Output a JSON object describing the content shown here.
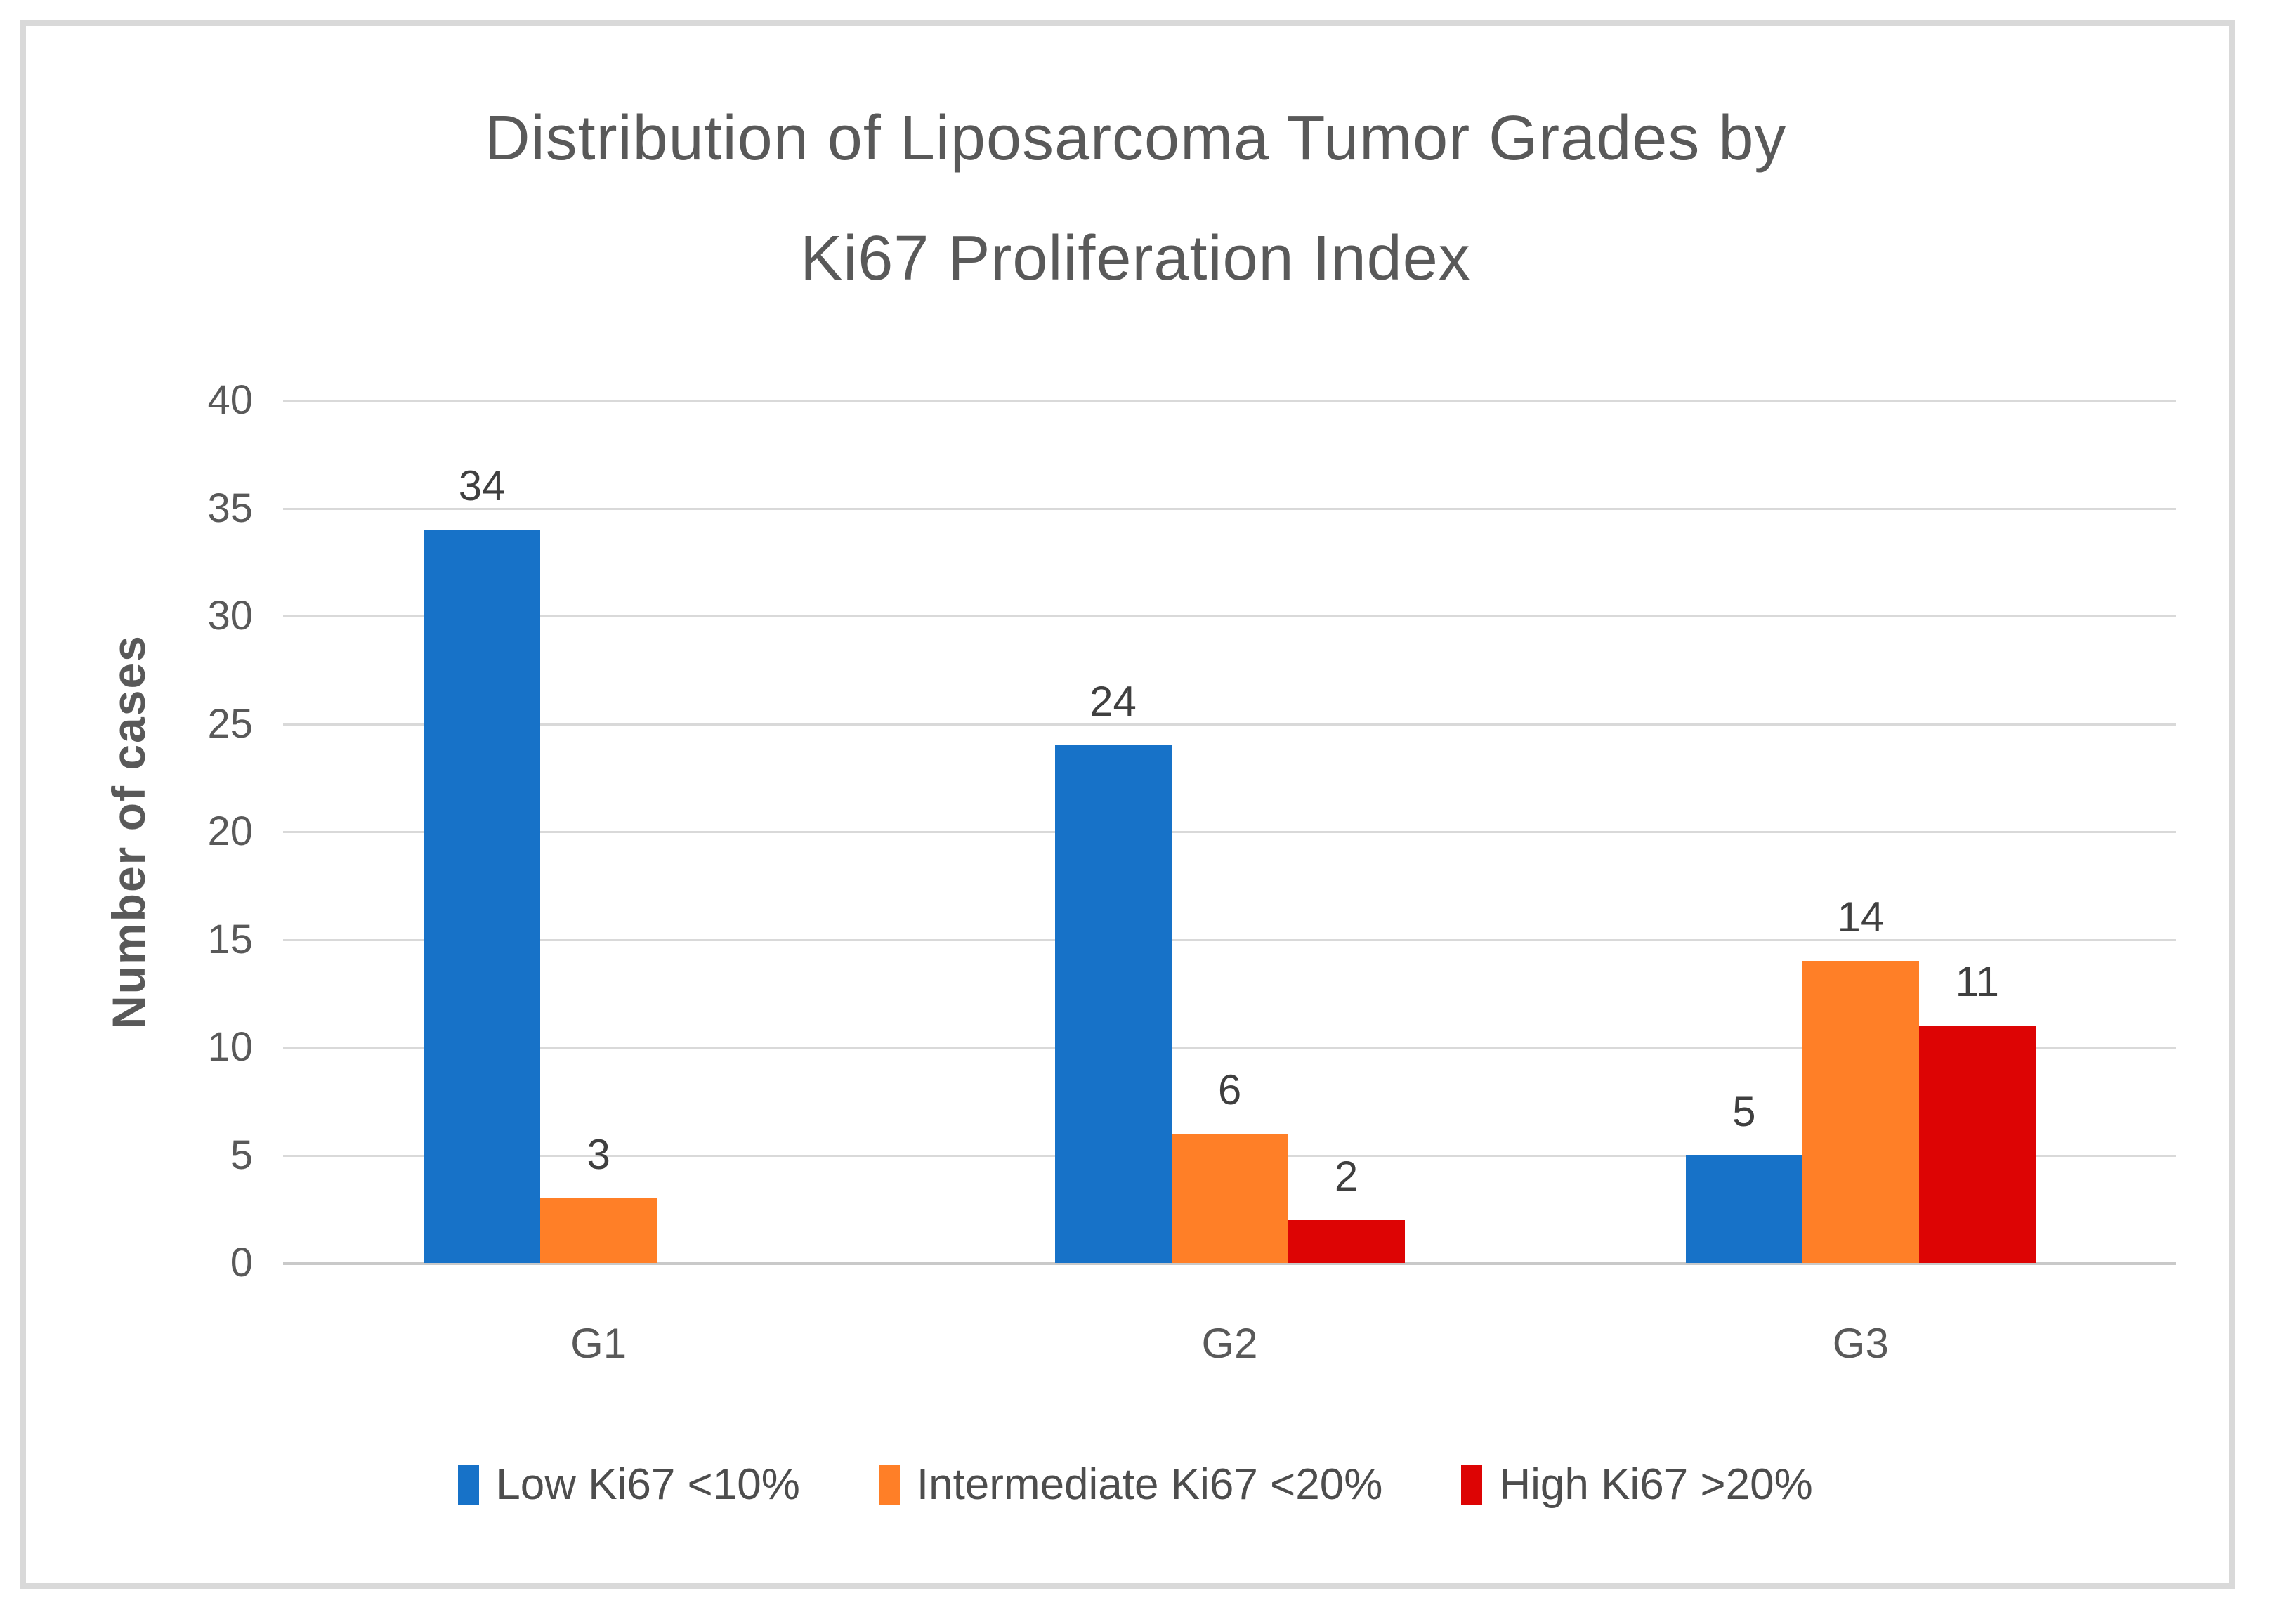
{
  "title_lines": [
    "Distribution of Liposarcoma Tumor Grades by",
    "Ki67 Proliferation Index"
  ],
  "chart_data": {
    "type": "bar",
    "title": "Distribution of Liposarcoma Tumor Grades by Ki67 Proliferation Index",
    "categories": [
      "G1",
      "G2",
      "G3"
    ],
    "series": [
      {
        "name": "Low Ki67 <10%",
        "color": "#1772C8",
        "values": [
          34,
          24,
          5
        ]
      },
      {
        "name": "Intermediate Ki67 <20%",
        "color": "#FF7F27",
        "values": [
          3,
          6,
          14
        ]
      },
      {
        "name": "High Ki67 >20%",
        "color": "#DD0404",
        "values": [
          0,
          2,
          11
        ]
      }
    ],
    "xlabel": "",
    "ylabel": "Number of cases",
    "ylim": [
      0,
      40
    ],
    "ytick_step": 5,
    "ytick_labels": [
      "0",
      "5",
      "10",
      "15",
      "20",
      "25",
      "30",
      "35",
      "40"
    ],
    "grid": true,
    "legend_position": "bottom",
    "data_labels": true,
    "hide_zero_labels": true,
    "frame_color": "#d9d9d9",
    "gridline_color": "#d9d9d9",
    "axis_text_color": "#595959",
    "data_label_color": "#3f3f3f"
  }
}
